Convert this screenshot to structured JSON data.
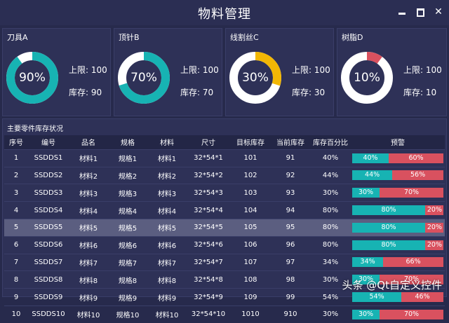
{
  "window": {
    "title": "物料管理",
    "controls": {
      "min_icon": "minimize-icon",
      "max_icon": "maximize-icon",
      "close_label": "✕"
    }
  },
  "colors": {
    "background": "#272a4c",
    "card": "#2e3157",
    "teal": "#17b3b3",
    "gold": "#f2b705",
    "red": "#d9515f",
    "ring_track": "#ffffff"
  },
  "cards": [
    {
      "title": "刀具A",
      "percent": 90,
      "percent_label": "90%",
      "upper_label": "上限: 100",
      "stock_label": "库存: 90",
      "color": "#17b3b3"
    },
    {
      "title": "顶针B",
      "percent": 70,
      "percent_label": "70%",
      "upper_label": "上限: 100",
      "stock_label": "库存: 70",
      "color": "#17b3b3"
    },
    {
      "title": "线割丝C",
      "percent": 30,
      "percent_label": "30%",
      "upper_label": "上限: 100",
      "stock_label": "库存: 30",
      "color": "#f2b705"
    },
    {
      "title": "树脂D",
      "percent": 10,
      "percent_label": "10%",
      "upper_label": "上限: 100",
      "stock_label": "库存: 10",
      "color": "#d9515f"
    }
  ],
  "table": {
    "title": "主要零件库存状况",
    "headers": [
      "序号",
      "编号",
      "品名",
      "规格",
      "材料",
      "尺寸",
      "目标库存",
      "当前库存",
      "库存百分比",
      "预警"
    ],
    "rows": [
      {
        "cells": [
          "1",
          "SSDDS1",
          "材料1",
          "规格1",
          "材料1",
          "32*54*1",
          "101",
          "91",
          "40%"
        ],
        "ok": 40,
        "ok_label": "40%",
        "rest_label": "60%"
      },
      {
        "cells": [
          "2",
          "SSDDS2",
          "材料2",
          "规格2",
          "材料2",
          "32*54*2",
          "102",
          "92",
          "44%"
        ],
        "ok": 44,
        "ok_label": "44%",
        "rest_label": "56%"
      },
      {
        "cells": [
          "3",
          "SSDDS3",
          "材料3",
          "规格3",
          "材料3",
          "32*54*3",
          "103",
          "93",
          "30%"
        ],
        "ok": 30,
        "ok_label": "30%",
        "rest_label": "70%"
      },
      {
        "cells": [
          "4",
          "SSDDS4",
          "材料4",
          "规格4",
          "材料4",
          "32*54*4",
          "104",
          "94",
          "80%"
        ],
        "ok": 80,
        "ok_label": "80%",
        "rest_label": "20%"
      },
      {
        "cells": [
          "5",
          "SSDDS5",
          "材料5",
          "规格5",
          "材料5",
          "32*54*5",
          "105",
          "95",
          "80%"
        ],
        "ok": 80,
        "ok_label": "80%",
        "rest_label": "20%"
      },
      {
        "cells": [
          "6",
          "SSDDS6",
          "材料6",
          "规格6",
          "材料6",
          "32*54*6",
          "106",
          "96",
          "80%"
        ],
        "ok": 80,
        "ok_label": "80%",
        "rest_label": "20%"
      },
      {
        "cells": [
          "7",
          "SSDDS7",
          "材料7",
          "规格7",
          "材料7",
          "32*54*7",
          "107",
          "97",
          "34%"
        ],
        "ok": 34,
        "ok_label": "34%",
        "rest_label": "66%"
      },
      {
        "cells": [
          "8",
          "SSDDS8",
          "材料8",
          "规格8",
          "材料8",
          "32*54*8",
          "108",
          "98",
          "30%"
        ],
        "ok": 30,
        "ok_label": "30%",
        "rest_label": "70%"
      },
      {
        "cells": [
          "9",
          "SSDDS9",
          "材料9",
          "规格9",
          "材料9",
          "32*54*9",
          "109",
          "99",
          "54%"
        ],
        "ok": 54,
        "ok_label": "54%",
        "rest_label": "46%"
      },
      {
        "cells": [
          "10",
          "SSDDS10",
          "材料10",
          "规格10",
          "材料10",
          "32*54*10",
          "1010",
          "910",
          "30%"
        ],
        "ok": 30,
        "ok_label": "30%",
        "rest_label": "70%"
      }
    ],
    "selected_row": 5
  },
  "watermark": "头条 @Qt自定义控件"
}
